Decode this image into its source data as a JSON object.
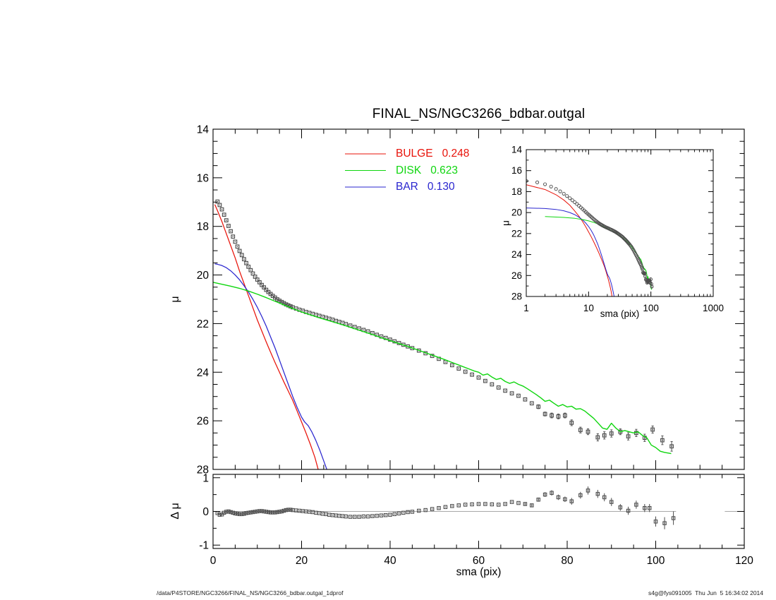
{
  "title": "FINAL_NS/NGC3266_bdbar.outgal",
  "footer": {
    "left": "/data/P4STORE/NGC3266/FINAL_NS/NGC3266_bdbar.outgal_1dprof",
    "right": "s4g@fys091005  Thu Jun  5 16:34:02 2014"
  },
  "colors": {
    "bulge": "#e8130a",
    "disk": "#0fd60f",
    "bar": "#2a26cf",
    "data_marker": "#4d4d4d",
    "marker_dot": "#3a3a3a",
    "zero_line": "#a8a8a8",
    "axis": "#000000"
  },
  "legend": [
    {
      "label": "BULGE",
      "value": "0.248",
      "color_key": "bulge"
    },
    {
      "label": "DISK",
      "value": "0.623",
      "color_key": "disk"
    },
    {
      "label": "BAR",
      "value": "0.130",
      "color_key": "bar"
    }
  ],
  "main_plot": {
    "xlabel": "sma (pix)",
    "ylabel": "μ",
    "xlim": [
      0,
      120
    ],
    "ylim": [
      28,
      14
    ],
    "xticks": [
      0,
      20,
      40,
      60,
      80,
      100,
      120
    ],
    "yticks": [
      14,
      16,
      18,
      20,
      22,
      24,
      26,
      28
    ]
  },
  "residual_plot": {
    "ylabel": "Δ μ",
    "ylim": [
      -1.1,
      1.1
    ],
    "yticks": [
      1,
      0,
      -1
    ]
  },
  "inset_plot": {
    "xlabel": "sma (pix)",
    "ylabel": "μ",
    "xscale": "log",
    "xlim": [
      1,
      1000
    ],
    "ylim": [
      28,
      14
    ],
    "xticks": [
      1,
      10,
      100,
      1000
    ],
    "yticks": [
      14,
      16,
      18,
      20,
      22,
      24,
      26,
      28
    ]
  },
  "chart_data": {
    "type": "line+scatter",
    "xlabel": "sma (pix)",
    "series": {
      "observed": [
        [
          1,
          16.98
        ],
        [
          1.5,
          17.12
        ],
        [
          2,
          17.3
        ],
        [
          2.5,
          17.52
        ],
        [
          3,
          17.75
        ],
        [
          3.5,
          17.98
        ],
        [
          4,
          18.2
        ],
        [
          4.5,
          18.42
        ],
        [
          5,
          18.63
        ],
        [
          5.5,
          18.83
        ],
        [
          6,
          19.01
        ],
        [
          6.5,
          19.18
        ],
        [
          7,
          19.35
        ],
        [
          7.5,
          19.51
        ],
        [
          8,
          19.66
        ],
        [
          8.5,
          19.8
        ],
        [
          9,
          19.94
        ],
        [
          9.5,
          20.07
        ],
        [
          10,
          20.19
        ],
        [
          10.5,
          20.3
        ],
        [
          11,
          20.41
        ],
        [
          11.5,
          20.51
        ],
        [
          12,
          20.61
        ],
        [
          12.5,
          20.7
        ],
        [
          13,
          20.78
        ],
        [
          13.5,
          20.86
        ],
        [
          14,
          20.93
        ],
        [
          14.5,
          21.0
        ],
        [
          15,
          21.06
        ],
        [
          15.5,
          21.11
        ],
        [
          16,
          21.16
        ],
        [
          16.5,
          21.21
        ],
        [
          17,
          21.25
        ],
        [
          17.5,
          21.29
        ],
        [
          18,
          21.33
        ],
        [
          18.75,
          21.38
        ],
        [
          19.5,
          21.43
        ],
        [
          20.25,
          21.47
        ],
        [
          21,
          21.52
        ],
        [
          21.75,
          21.56
        ],
        [
          22.5,
          21.6
        ],
        [
          23.25,
          21.64
        ],
        [
          24,
          21.68
        ],
        [
          24.75,
          21.72
        ],
        [
          25.5,
          21.76
        ],
        [
          26.25,
          21.8
        ],
        [
          27,
          21.84
        ],
        [
          27.75,
          21.89
        ],
        [
          28.5,
          21.93
        ],
        [
          29.25,
          21.97
        ],
        [
          30,
          22.02
        ],
        [
          31,
          22.08
        ],
        [
          32,
          22.14
        ],
        [
          33,
          22.2
        ],
        [
          34,
          22.26
        ],
        [
          35,
          22.32
        ],
        [
          36,
          22.39
        ],
        [
          37,
          22.46
        ],
        [
          38,
          22.53
        ],
        [
          39,
          22.59
        ],
        [
          40,
          22.66
        ],
        [
          41,
          22.73
        ],
        [
          42,
          22.8
        ],
        [
          43,
          22.87
        ],
        [
          44,
          22.94
        ],
        [
          45,
          23.01
        ],
        [
          46.5,
          23.11
        ],
        [
          48,
          23.22
        ],
        [
          49.5,
          23.33
        ],
        [
          51,
          23.45
        ],
        [
          52.5,
          23.58
        ],
        [
          54,
          23.71
        ],
        [
          55.5,
          23.85
        ],
        [
          57,
          23.98
        ],
        [
          58.5,
          24.1
        ],
        [
          60,
          24.22
        ],
        [
          61.5,
          24.36
        ],
        [
          63,
          24.5
        ],
        [
          64.5,
          24.63
        ],
        [
          66,
          24.76
        ],
        [
          67.5,
          24.87
        ],
        [
          69,
          24.97
        ],
        [
          70.5,
          25.12
        ],
        [
          72,
          25.28
        ],
        [
          73.5,
          25.42,
          0.08
        ],
        [
          75,
          25.72,
          0.08
        ],
        [
          76.5,
          25.78,
          0.1
        ],
        [
          78,
          25.82,
          0.1
        ],
        [
          79.5,
          25.78,
          0.1
        ],
        [
          81,
          26.08,
          0.12
        ],
        [
          83,
          26.38,
          0.12
        ],
        [
          84.7,
          26.45,
          0.12
        ],
        [
          86.9,
          26.68,
          0.15
        ],
        [
          88.4,
          26.6,
          0.15
        ],
        [
          90,
          26.52,
          0.15
        ],
        [
          92,
          26.45,
          0.12
        ],
        [
          93.8,
          26.64,
          0.15
        ],
        [
          95.6,
          26.5,
          0.15
        ],
        [
          97.5,
          26.7,
          0.15
        ],
        [
          99.3,
          26.36,
          0.15
        ],
        [
          101.5,
          26.8,
          0.18
        ],
        [
          103.6,
          27.05,
          0.2
        ]
      ],
      "bulge": [
        [
          0.4,
          17.1
        ],
        [
          1,
          17.35
        ],
        [
          2,
          17.8
        ],
        [
          3,
          18.3
        ],
        [
          4,
          18.8
        ],
        [
          5,
          19.3
        ],
        [
          6,
          19.85
        ],
        [
          7,
          20.35
        ],
        [
          8,
          20.85
        ],
        [
          9,
          21.35
        ],
        [
          10,
          21.85
        ],
        [
          11,
          22.3
        ],
        [
          12,
          22.75
        ],
        [
          13,
          23.18
        ],
        [
          14,
          23.6
        ],
        [
          15,
          24.0
        ],
        [
          16,
          24.4
        ],
        [
          17,
          24.78
        ],
        [
          18,
          25.16
        ],
        [
          19,
          25.6
        ],
        [
          20,
          26.05
        ],
        [
          21,
          26.5
        ],
        [
          22,
          26.98
        ],
        [
          23,
          27.5
        ],
        [
          23.9,
          28.1
        ],
        [
          24.4,
          28.5
        ]
      ],
      "bar": [
        [
          0.4,
          19.54
        ],
        [
          1,
          19.56
        ],
        [
          2,
          19.61
        ],
        [
          3,
          19.7
        ],
        [
          4,
          19.83
        ],
        [
          5,
          20.0
        ],
        [
          6,
          20.2
        ],
        [
          7,
          20.44
        ],
        [
          8,
          20.7
        ],
        [
          9,
          21.0
        ],
        [
          10,
          21.33
        ],
        [
          11,
          21.7
        ],
        [
          12,
          22.1
        ],
        [
          13,
          22.55
        ],
        [
          14,
          23.0
        ],
        [
          15,
          23.5
        ],
        [
          16,
          24.0
        ],
        [
          17,
          24.5
        ],
        [
          18,
          25.0
        ],
        [
          19,
          25.45
        ],
        [
          20,
          25.85
        ],
        [
          20.7,
          26.05
        ],
        [
          21.5,
          26.2
        ],
        [
          22.3,
          26.45
        ],
        [
          23.2,
          26.8
        ],
        [
          24.1,
          27.2
        ],
        [
          25,
          27.65
        ],
        [
          25.9,
          28.1
        ],
        [
          26.4,
          28.5
        ]
      ],
      "disk": [
        [
          0,
          20.3
        ],
        [
          2,
          20.38
        ],
        [
          4,
          20.46
        ],
        [
          6,
          20.55
        ],
        [
          8,
          20.66
        ],
        [
          10,
          20.79
        ],
        [
          12,
          20.93
        ],
        [
          14,
          21.08
        ],
        [
          16,
          21.23
        ],
        [
          18,
          21.38
        ],
        [
          20,
          21.52
        ],
        [
          22,
          21.64
        ],
        [
          24,
          21.76
        ],
        [
          26,
          21.87
        ],
        [
          28,
          21.98
        ],
        [
          30,
          22.09
        ],
        [
          32,
          22.21
        ],
        [
          34,
          22.33
        ],
        [
          36,
          22.45
        ],
        [
          38,
          22.58
        ],
        [
          40,
          22.7
        ],
        [
          42,
          22.82
        ],
        [
          44,
          22.94
        ],
        [
          46,
          23.07
        ],
        [
          48,
          23.2
        ],
        [
          50,
          23.33
        ],
        [
          52,
          23.46
        ],
        [
          54,
          23.6
        ],
        [
          56,
          23.74
        ],
        [
          58,
          23.88
        ],
        [
          59,
          23.95
        ],
        [
          60,
          24.0
        ],
        [
          61,
          24.12
        ],
        [
          62,
          24.07
        ],
        [
          63,
          24.2
        ],
        [
          64,
          24.3
        ],
        [
          65,
          24.25
        ],
        [
          66,
          24.38
        ],
        [
          67,
          24.46
        ],
        [
          68,
          24.4
        ],
        [
          69,
          24.5
        ],
        [
          70,
          24.57
        ],
        [
          71,
          24.68
        ],
        [
          72,
          24.8
        ],
        [
          73,
          24.92
        ],
        [
          74,
          25.05
        ],
        [
          75,
          25.2
        ],
        [
          76,
          25.15
        ],
        [
          77,
          25.28
        ],
        [
          78,
          25.4
        ],
        [
          79,
          25.33
        ],
        [
          80,
          25.43
        ],
        [
          81,
          25.4
        ],
        [
          82,
          25.52
        ],
        [
          83,
          25.5
        ],
        [
          84,
          25.6
        ],
        [
          85,
          25.75
        ],
        [
          86,
          25.9
        ],
        [
          87,
          26.1
        ],
        [
          88,
          26.3
        ],
        [
          89,
          26.35
        ],
        [
          90,
          26.1
        ],
        [
          91,
          26.3
        ],
        [
          92,
          26.45
        ],
        [
          93,
          26.4
        ],
        [
          94,
          26.45
        ],
        [
          95,
          26.5
        ],
        [
          96,
          26.45
        ],
        [
          97,
          26.6
        ],
        [
          98,
          26.7
        ],
        [
          99,
          27.0
        ],
        [
          100,
          27.1
        ],
        [
          101,
          27.25
        ],
        [
          102,
          27.3
        ],
        [
          103.5,
          27.35
        ]
      ],
      "residual": [
        [
          1,
          -0.05
        ],
        [
          1.5,
          -0.1
        ],
        [
          2,
          -0.09
        ],
        [
          2.5,
          -0.04
        ],
        [
          3,
          -0.01
        ],
        [
          3.5,
          0
        ],
        [
          4,
          -0.02
        ],
        [
          4.5,
          -0.04
        ],
        [
          5,
          -0.06
        ],
        [
          5.5,
          -0.07
        ],
        [
          6,
          -0.08
        ],
        [
          6.5,
          -0.08
        ],
        [
          7,
          -0.07
        ],
        [
          7.5,
          -0.05
        ],
        [
          8,
          -0.04
        ],
        [
          8.5,
          -0.03
        ],
        [
          9,
          -0.02
        ],
        [
          9.5,
          -0.01
        ],
        [
          10,
          0
        ],
        [
          10.5,
          0.01
        ],
        [
          11,
          0.01
        ],
        [
          11.5,
          0
        ],
        [
          12,
          -0.01
        ],
        [
          12.5,
          -0.02
        ],
        [
          13,
          -0.03
        ],
        [
          13.5,
          -0.03
        ],
        [
          14,
          -0.03
        ],
        [
          14.5,
          -0.02
        ],
        [
          15,
          -0.01
        ],
        [
          15.5,
          0
        ],
        [
          16,
          0.02
        ],
        [
          16.5,
          0.04
        ],
        [
          17,
          0.05
        ],
        [
          17.5,
          0.05
        ],
        [
          18,
          0.04
        ],
        [
          18.75,
          0.03
        ],
        [
          19.5,
          0.02
        ],
        [
          20.25,
          0.01
        ],
        [
          21,
          0
        ],
        [
          21.75,
          -0.01
        ],
        [
          22.5,
          -0.02
        ],
        [
          23.25,
          -0.04
        ],
        [
          24,
          -0.05
        ],
        [
          24.75,
          -0.07
        ],
        [
          25.5,
          -0.08
        ],
        [
          26.25,
          -0.1
        ],
        [
          27,
          -0.11
        ],
        [
          27.75,
          -0.12
        ],
        [
          28.5,
          -0.13
        ],
        [
          29.25,
          -0.14
        ],
        [
          30,
          -0.15
        ],
        [
          31,
          -0.16
        ],
        [
          32,
          -0.16
        ],
        [
          33,
          -0.16
        ],
        [
          34,
          -0.15
        ],
        [
          35,
          -0.15
        ],
        [
          36,
          -0.14
        ],
        [
          37,
          -0.13
        ],
        [
          38,
          -0.12
        ],
        [
          39,
          -0.11
        ],
        [
          40,
          -0.1
        ],
        [
          41,
          -0.08
        ],
        [
          42,
          -0.06
        ],
        [
          43,
          -0.04
        ],
        [
          44,
          -0.02
        ],
        [
          45,
          -0.01
        ],
        [
          46.5,
          0.02
        ],
        [
          48,
          0.04
        ],
        [
          49.5,
          0.07
        ],
        [
          51,
          0.1
        ],
        [
          52.5,
          0.13
        ],
        [
          54,
          0.16
        ],
        [
          55.5,
          0.18
        ],
        [
          57,
          0.2
        ],
        [
          58.5,
          0.21
        ],
        [
          60,
          0.22
        ],
        [
          61.5,
          0.22
        ],
        [
          63,
          0.21
        ],
        [
          64.5,
          0.2
        ],
        [
          66,
          0.22
        ],
        [
          67.5,
          0.28
        ],
        [
          69,
          0.25
        ],
        [
          70.5,
          0.22,
          0.05
        ],
        [
          72,
          0.18,
          0.05
        ],
        [
          73.5,
          0.35,
          0.06
        ],
        [
          75,
          0.5,
          0.07
        ],
        [
          76.5,
          0.55,
          0.08
        ],
        [
          78,
          0.42,
          0.08
        ],
        [
          79.5,
          0.36,
          0.08
        ],
        [
          81,
          0.3,
          0.1
        ],
        [
          83,
          0.48,
          0.1
        ],
        [
          84.7,
          0.62,
          0.12
        ],
        [
          86.9,
          0.52,
          0.12
        ],
        [
          88.4,
          0.42,
          0.12
        ],
        [
          90,
          0.28,
          0.12
        ],
        [
          92,
          0.12,
          0.1
        ],
        [
          93.8,
          0.02,
          0.12
        ],
        [
          95.6,
          0.2,
          0.12
        ],
        [
          97.5,
          0.1,
          0.12
        ],
        [
          98.6,
          0.1,
          0.12
        ],
        [
          100,
          -0.3,
          0.15
        ],
        [
          102,
          -0.35,
          0.18
        ],
        [
          104,
          -0.2,
          0.2
        ]
      ],
      "zero_line_segments": [
        [
          0,
          104.6
        ],
        [
          115.6,
          120
        ]
      ]
    }
  }
}
